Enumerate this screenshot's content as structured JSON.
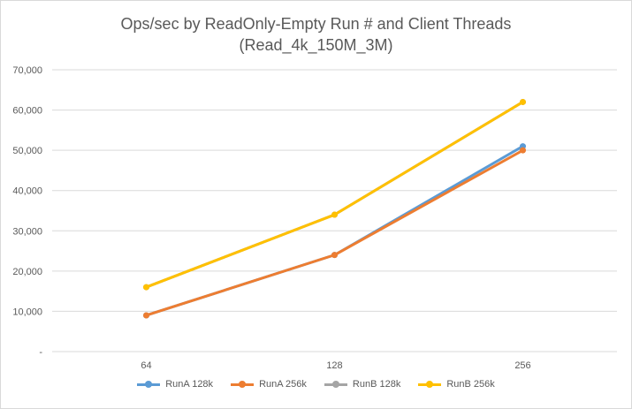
{
  "chart_data": {
    "type": "line",
    "title": "Ops/sec by ReadOnly-Empty Run # and Client Threads",
    "subtitle": "(Read_4k_150M_3M)",
    "categories": [
      "64",
      "128",
      "256"
    ],
    "ylim": [
      0,
      70000
    ],
    "yticks": [
      0,
      10000,
      20000,
      30000,
      40000,
      50000,
      60000,
      70000
    ],
    "ytick_labels": [
      "-",
      "10,000",
      "20,000",
      "30,000",
      "40,000",
      "50,000",
      "60,000",
      "70,000"
    ],
    "grid": true,
    "legend_position": "bottom",
    "series": [
      {
        "name": "RunA 128k",
        "color": "#5b9bd5",
        "values": [
          9000,
          24000,
          51000
        ]
      },
      {
        "name": "RunA 256k",
        "color": "#ed7d31",
        "values": [
          9000,
          24000,
          50000
        ]
      },
      {
        "name": "RunB 128k",
        "color": "#a5a5a5",
        "values": [
          16000,
          34000,
          62000
        ]
      },
      {
        "name": "RunB 256k",
        "color": "#ffc000",
        "values": [
          16000,
          34000,
          62000
        ]
      }
    ]
  }
}
